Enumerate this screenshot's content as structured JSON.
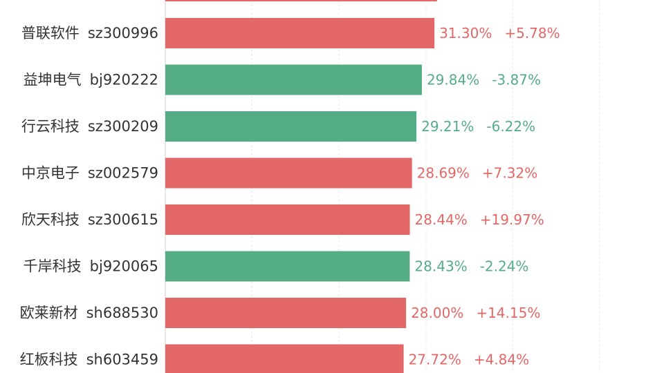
{
  "chart_data": {
    "type": "bar",
    "orientation": "horizontal",
    "grid": "vertical",
    "colors": {
      "up": "#e46767",
      "down": "#55ad86",
      "gridline": "#e6e6e6",
      "axis": "#cfcfcf",
      "label": "#333333"
    },
    "x_range": [
      0,
      58
    ],
    "partial_top_bar": {
      "value": 31.6,
      "direction": "up"
    },
    "rows": [
      {
        "name": "普联软件",
        "code": "sz300996",
        "value": 31.3,
        "value_label": "31.30%",
        "change_label": "+5.78%",
        "direction": "up"
      },
      {
        "name": "益坤电气",
        "code": "bj920222",
        "value": 29.84,
        "value_label": "29.84%",
        "change_label": "-3.87%",
        "direction": "down"
      },
      {
        "name": "行云科技",
        "code": "sz300209",
        "value": 29.21,
        "value_label": "29.21%",
        "change_label": "-6.22%",
        "direction": "down"
      },
      {
        "name": "中京电子",
        "code": "sz002579",
        "value": 28.69,
        "value_label": "28.69%",
        "change_label": "+7.32%",
        "direction": "up"
      },
      {
        "name": "欣天科技",
        "code": "sz300615",
        "value": 28.44,
        "value_label": "28.44%",
        "change_label": "+19.97%",
        "direction": "up"
      },
      {
        "name": "千岸科技",
        "code": "bj920065",
        "value": 28.43,
        "value_label": "28.43%",
        "change_label": "-2.24%",
        "direction": "down"
      },
      {
        "name": "欧莱新材",
        "code": "sh688530",
        "value": 28.0,
        "value_label": "28.00%",
        "change_label": "+14.15%",
        "direction": "up"
      },
      {
        "name": "红板科技",
        "code": "sh603459",
        "value": 27.72,
        "value_label": "27.72%",
        "change_label": "+4.84%",
        "direction": "up"
      }
    ]
  }
}
